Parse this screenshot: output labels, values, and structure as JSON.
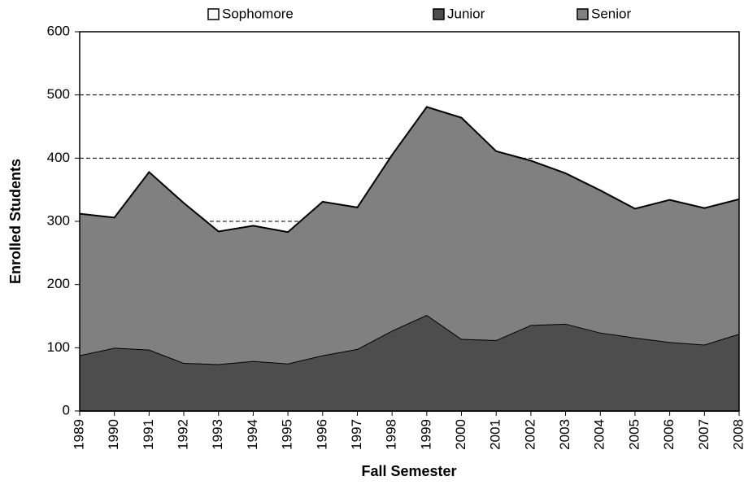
{
  "chart_data": {
    "type": "stacked_area",
    "x_label": "Fall Semester",
    "y_label": "Enrolled Students",
    "categories": [
      "1989",
      "1990",
      "1991",
      "1992",
      "1993",
      "1994",
      "1995",
      "1996",
      "1997",
      "1998",
      "1999",
      "2000",
      "2001",
      "2002",
      "2003",
      "2004",
      "2005",
      "2006",
      "2007",
      "2008"
    ],
    "series": [
      {
        "name": "Sophomore",
        "color": "#ffffff",
        "values": [
          0,
          0,
          0,
          0,
          0,
          0,
          0,
          0,
          0,
          0,
          0,
          0,
          0,
          0,
          0,
          0,
          0,
          0,
          0,
          0
        ]
      },
      {
        "name": "Junior",
        "color": "#4d4d4d",
        "values": [
          88,
          100,
          97,
          76,
          74,
          79,
          75,
          88,
          98,
          127,
          152,
          114,
          112,
          136,
          138,
          124,
          116,
          109,
          105,
          122
        ]
      },
      {
        "name": "Senior",
        "color": "#808080",
        "values": [
          224,
          206,
          281,
          253,
          210,
          214,
          208,
          243,
          224,
          278,
          329,
          350,
          299,
          260,
          238,
          225,
          204,
          225,
          216,
          213
        ]
      }
    ],
    "ylim": [
      0,
      600
    ],
    "yticks": [
      0,
      100,
      200,
      300,
      400,
      500,
      600
    ],
    "grid": true
  }
}
